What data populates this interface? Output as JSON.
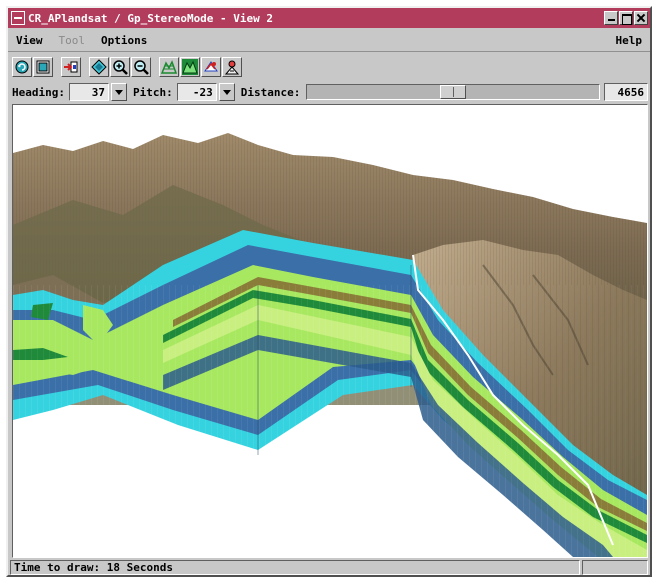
{
  "window": {
    "title": "CR_APlandsat / Gp_StereoMode - View 2"
  },
  "menu": {
    "view": "View",
    "tool": "Tool",
    "options": "Options",
    "help": "Help"
  },
  "toolbar": {
    "tools": [
      {
        "icon": "redraw-icon"
      },
      {
        "icon": "full-view-icon"
      },
      {
        "icon": "zoom-to-extent-icon"
      },
      {
        "icon": "diamond-select-icon"
      },
      {
        "icon": "zoom-in-icon"
      },
      {
        "icon": "zoom-out-icon"
      },
      {
        "icon": "terrain-icon"
      },
      {
        "icon": "surface-fill-icon"
      },
      {
        "icon": "layer-controls-icon"
      },
      {
        "icon": "viewer-position-icon"
      }
    ]
  },
  "controls": {
    "heading_label": "Heading:",
    "heading_value": "37",
    "pitch_label": "Pitch:",
    "pitch_value": "-23",
    "distance_label": "Distance:",
    "distance_value": "4656",
    "distance_slider_fraction": 0.5
  },
  "status": {
    "text": "Time to draw: 18 Seconds"
  },
  "colors": {
    "titlebar": "#b13c5b",
    "chrome": "#c8c8c8",
    "layer_cyan": "#35d3e0",
    "layer_blue": "#3b6fa8",
    "layer_green": "#a8e860",
    "terrain": "#8d7b62"
  }
}
